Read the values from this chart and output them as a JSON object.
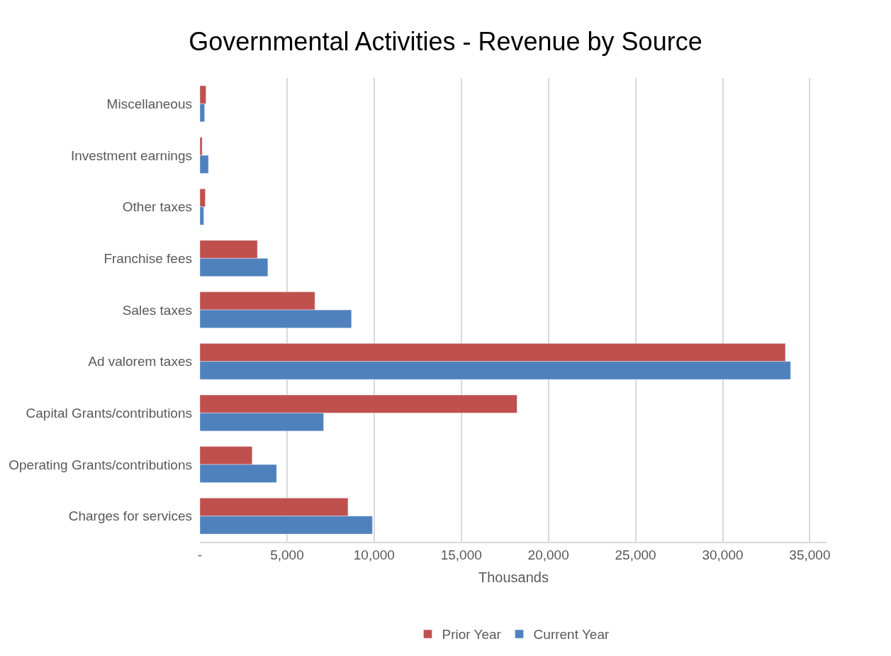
{
  "chart_data": {
    "type": "bar",
    "orientation": "horizontal",
    "title": "Governmental Activities - Revenue by Source",
    "xlabel": "Thousands",
    "categories": [
      "Miscellaneous",
      "Investment earnings",
      "Other taxes",
      "Franchise fees",
      "Sales taxes",
      "Ad valorem taxes",
      "Capital Grants/contributions",
      "Operating Grants/contributions",
      "Charges for services"
    ],
    "series": [
      {
        "name": "Prior Year",
        "color": "#c0504d",
        "values": [
          350,
          130,
          310,
          3300,
          6600,
          33600,
          18200,
          3000,
          8500
        ]
      },
      {
        "name": "Current Year",
        "color": "#4f81bd",
        "values": [
          270,
          490,
          220,
          3900,
          8700,
          33900,
          7100,
          4400,
          9900
        ]
      }
    ],
    "xlim": [
      0,
      36000
    ],
    "xticks": [
      {
        "value": 0,
        "label": "-"
      },
      {
        "value": 5000,
        "label": "5,000"
      },
      {
        "value": 10000,
        "label": "10,000"
      },
      {
        "value": 15000,
        "label": "15,000"
      },
      {
        "value": 20000,
        "label": "20,000"
      },
      {
        "value": 25000,
        "label": "25,000"
      },
      {
        "value": 30000,
        "label": "30,000"
      },
      {
        "value": 35000,
        "label": "35,000"
      }
    ],
    "grid": "x",
    "legend": "bottom"
  }
}
